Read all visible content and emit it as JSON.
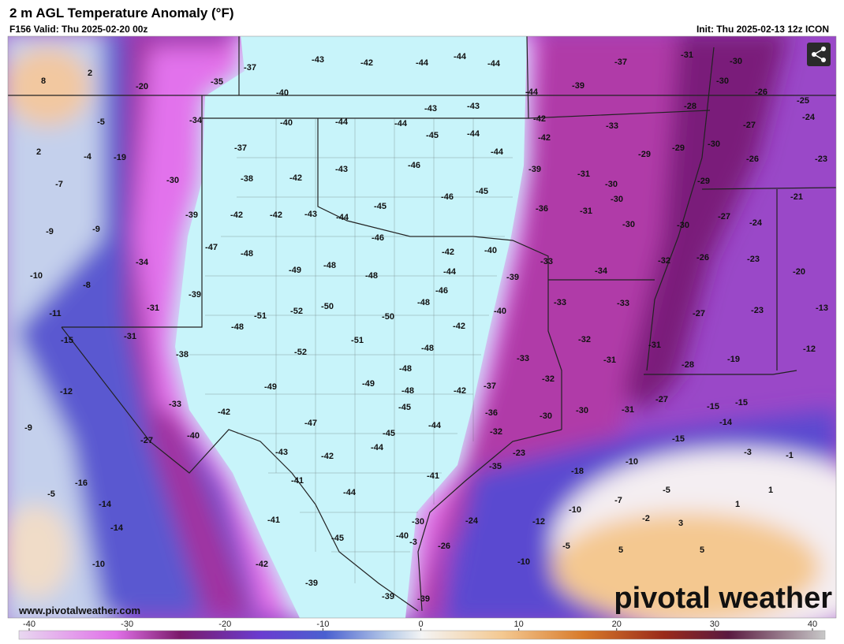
{
  "header": {
    "title": "2 m AGL Temperature Anomaly (°F)",
    "valid": "F156 Valid: Thu 2025-02-20 00z",
    "init": "Init: Thu 2025-02-13 12z ICON"
  },
  "map_labels": [
    8,
    2,
    -20,
    -35,
    -37,
    -43,
    -42,
    -44,
    -44,
    -44,
    -37,
    -31,
    -30,
    -39,
    -44,
    -40,
    -30,
    -26,
    -25,
    -5,
    -34,
    -40,
    -44,
    -44,
    -43,
    -43,
    -45,
    -44,
    -42,
    -42,
    -33,
    -28,
    -27,
    -24,
    2,
    -4,
    -19,
    -37,
    -44,
    -29,
    -29,
    -30,
    -43,
    -46,
    -39,
    -31,
    -26,
    -23,
    -7,
    -30,
    -38,
    -42,
    -46,
    -45,
    -30,
    -29,
    -45,
    -39,
    -42,
    -42,
    -43,
    -44,
    -36,
    -31,
    -30,
    -27,
    -24,
    -21,
    -9,
    -9,
    -30,
    -30,
    -46,
    -47,
    -48,
    -42,
    -40,
    -34,
    -49,
    -48,
    -48,
    -44,
    -33,
    -32,
    -26,
    -23,
    -10,
    -39,
    -34,
    -20,
    -8,
    -39,
    -46,
    -48,
    -31,
    -50,
    -51,
    -52,
    -50,
    -40,
    -33,
    -33,
    -11,
    -48,
    -42,
    -27,
    -23,
    -13,
    -31,
    -15,
    -51,
    -48,
    -32,
    -31,
    -38,
    -52,
    -33,
    -31,
    -19,
    -12,
    -48,
    -28,
    -49,
    -49,
    -48,
    -32,
    -37,
    -12,
    -42,
    -27,
    -33,
    -42,
    -45,
    -36,
    -30,
    -30,
    -31,
    -15,
    -15,
    -14,
    -9,
    -40,
    -47,
    -44,
    -45,
    -32,
    -27,
    -15,
    -44,
    -43,
    -42,
    -23,
    -3,
    -1,
    -10,
    -35,
    -18,
    -41,
    -41,
    -16,
    -5,
    -44,
    -5,
    1,
    -14,
    -7,
    1,
    -10,
    -41,
    -24,
    -12,
    -2,
    3,
    -14,
    -30,
    -45,
    -40,
    -3,
    -26,
    -5,
    5,
    5,
    -10,
    -42,
    -10,
    -39,
    -39,
    -39
  ],
  "footer": {
    "url": "www.pivotalweather.com",
    "logo": "pivotal weather"
  },
  "colorbar": {
    "range": [
      -40,
      40
    ],
    "ticks": [
      -40,
      -30,
      -20,
      -10,
      0,
      10,
      20,
      30,
      40
    ]
  }
}
